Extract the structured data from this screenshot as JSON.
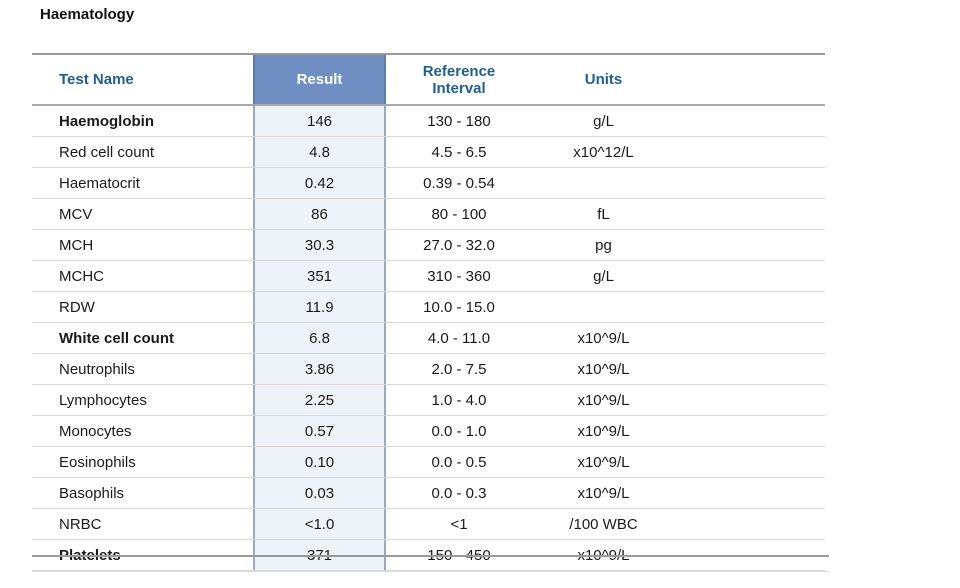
{
  "section": {
    "title": "Haematology"
  },
  "columns": {
    "test_name": "Test Name",
    "result": "Result",
    "reference_line1": "Reference",
    "reference_line2": "Interval",
    "units": "Units"
  },
  "rows": [
    {
      "name": "Haemoglobin",
      "result": "146",
      "reference": "130 - 180",
      "units": "g/L",
      "bold": true
    },
    {
      "name": "Red cell count",
      "result": "4.8",
      "reference": "4.5 - 6.5",
      "units": "x10^12/L",
      "bold": false
    },
    {
      "name": "Haematocrit",
      "result": "0.42",
      "reference": "0.39 - 0.54",
      "units": "",
      "bold": false
    },
    {
      "name": "MCV",
      "result": "86",
      "reference": "80 - 100",
      "units": "fL",
      "bold": false
    },
    {
      "name": "MCH",
      "result": "30.3",
      "reference": "27.0 - 32.0",
      "units": "pg",
      "bold": false
    },
    {
      "name": "MCHC",
      "result": "351",
      "reference": "310 - 360",
      "units": "g/L",
      "bold": false
    },
    {
      "name": "RDW",
      "result": "11.9",
      "reference": "10.0 - 15.0",
      "units": "",
      "bold": false
    },
    {
      "name": "White cell count",
      "result": "6.8",
      "reference": "4.0 - 11.0",
      "units": "x10^9/L",
      "bold": true
    },
    {
      "name": "Neutrophils",
      "result": "3.86",
      "reference": "2.0 - 7.5",
      "units": "x10^9/L",
      "bold": false
    },
    {
      "name": "Lymphocytes",
      "result": "2.25",
      "reference": "1.0 - 4.0",
      "units": "x10^9/L",
      "bold": false
    },
    {
      "name": "Monocytes",
      "result": "0.57",
      "reference": "0.0 - 1.0",
      "units": "x10^9/L",
      "bold": false
    },
    {
      "name": "Eosinophils",
      "result": "0.10",
      "reference": "0.0 - 0.5",
      "units": "x10^9/L",
      "bold": false
    },
    {
      "name": "Basophils",
      "result": "0.03",
      "reference": "0.0 - 0.3",
      "units": "x10^9/L",
      "bold": false
    },
    {
      "name": "NRBC",
      "result": "<1.0",
      "reference": "<1",
      "units": "/100 WBC",
      "bold": false
    },
    {
      "name": "Platelets",
      "result": "371",
      "reference": "150 - 450",
      "units": "x10^9/L",
      "bold": true
    }
  ],
  "colors": {
    "header_text": "#1f5e8e",
    "result_header_bg": "#6f8fc2",
    "result_column_bg": "#eef3fa"
  }
}
